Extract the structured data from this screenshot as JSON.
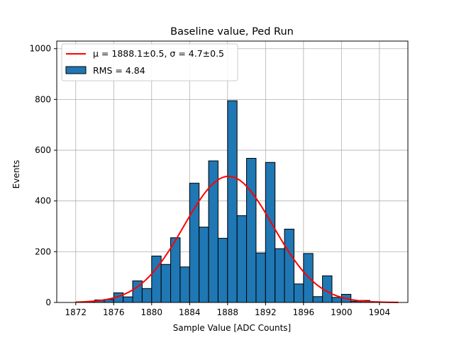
{
  "chart_data": {
    "type": "bar",
    "title": "Baseline value, Ped Run",
    "xlabel": "Sample Value [ADC Counts]",
    "ylabel": "Events",
    "xlim": [
      1870,
      1907
    ],
    "ylim": [
      0,
      1030
    ],
    "xticks": [
      1872,
      1876,
      1880,
      1884,
      1888,
      1892,
      1896,
      1900,
      1904
    ],
    "yticks": [
      0,
      200,
      400,
      600,
      800,
      1000
    ],
    "grid": true,
    "legend_position": "top-left",
    "histogram": {
      "name": "RMS = 4.84",
      "color": "#1f77b4",
      "edge_color": "#000000",
      "bin_edges": [
        1872,
        1873,
        1874,
        1875,
        1876,
        1877,
        1878,
        1879,
        1880,
        1881,
        1882,
        1883,
        1884,
        1885,
        1886,
        1887,
        1888,
        1889,
        1890,
        1891,
        1892,
        1893,
        1894,
        1895,
        1896,
        1897,
        1898,
        1899,
        1900,
        1901,
        1902,
        1903,
        1904,
        1905,
        1906
      ],
      "counts": [
        0,
        3,
        10,
        12,
        38,
        22,
        85,
        55,
        183,
        150,
        255,
        140,
        470,
        297,
        558,
        253,
        795,
        342,
        568,
        195,
        552,
        212,
        289,
        73,
        193,
        23,
        105,
        20,
        32,
        5,
        8,
        3,
        1,
        0
      ]
    },
    "fit": {
      "name": "μ = 1888.1±0.5, σ = 4.7±0.5",
      "mu_label": "μ = 1888.1±0.5",
      "sigma_label": "σ = 4.7±0.5",
      "color": "#ff0000",
      "mu": 1888.1,
      "sigma": 4.7,
      "amplitude": 497,
      "x_range": [
        1872,
        1906
      ]
    }
  }
}
